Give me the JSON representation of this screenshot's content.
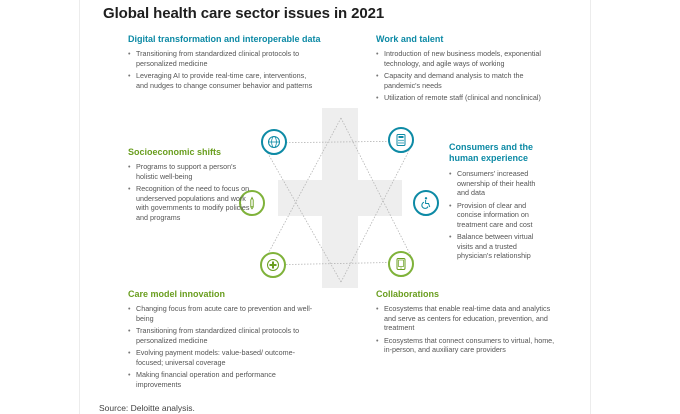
{
  "title": "Global health care sector issues in 2021",
  "source": "Source: Deloitte analysis.",
  "colors": {
    "teal": "#0d8aa5",
    "green": "#6a9e1f",
    "cross_fill": "#eeeeee",
    "line": "#b5b5b5"
  },
  "nodes": [
    {
      "name": "globe-icon",
      "color": "teal"
    },
    {
      "name": "calculator-icon",
      "color": "teal"
    },
    {
      "name": "pencil-icon",
      "color": "green"
    },
    {
      "name": "wheelchair-icon",
      "color": "teal"
    },
    {
      "name": "medical-cross-icon",
      "color": "green"
    },
    {
      "name": "tablet-device-icon",
      "color": "green"
    }
  ],
  "sections": {
    "digital": {
      "heading": "Digital transformation and interoperable data",
      "bullets": [
        "Transitioning from standardized clinical protocols to personalized medicine",
        "Leveraging AI to provide real-time care, interventions, and nudges to change consumer behavior and patterns"
      ]
    },
    "work": {
      "heading": "Work and talent",
      "bullets": [
        "Introduction of new business models, exponential technology, and agile ways of working",
        "Capacity and demand analysis to match the pandemic's needs",
        "Utilization of remote staff (clinical and nonclinical)"
      ]
    },
    "socio": {
      "heading": "Socioeconomic shifts",
      "bullets": [
        "Programs to support a person's holistic well-being",
        "Recognition of the need to focus on underserved populations and work with governments to modify policies and programs"
      ]
    },
    "consumers": {
      "heading_line1": "Consumers and the",
      "heading_line2": "human experience",
      "bullets": [
        "Consumers' increased ownership of their health and data",
        "Provision of clear and concise information on treatment care and cost",
        "Balance between virtual visits and a trusted physician's relationship"
      ]
    },
    "care": {
      "heading": "Care model innovation",
      "bullets": [
        "Changing focus from acute care to prevention and well-being",
        "Transitioning from standardized clinical protocols to personalized medicine",
        "Evolving payment models: value-based/ outcome-focused; universal coverage",
        "Making financial operation and performance improvements"
      ]
    },
    "collab": {
      "heading": "Collaborations",
      "bullets": [
        "Ecosystems that enable real-time data and analytics and serve as centers for education, prevention, and treatment",
        "Ecosystems that connect consumers to virtual, home, in-person, and auxiliary care providers"
      ]
    }
  }
}
